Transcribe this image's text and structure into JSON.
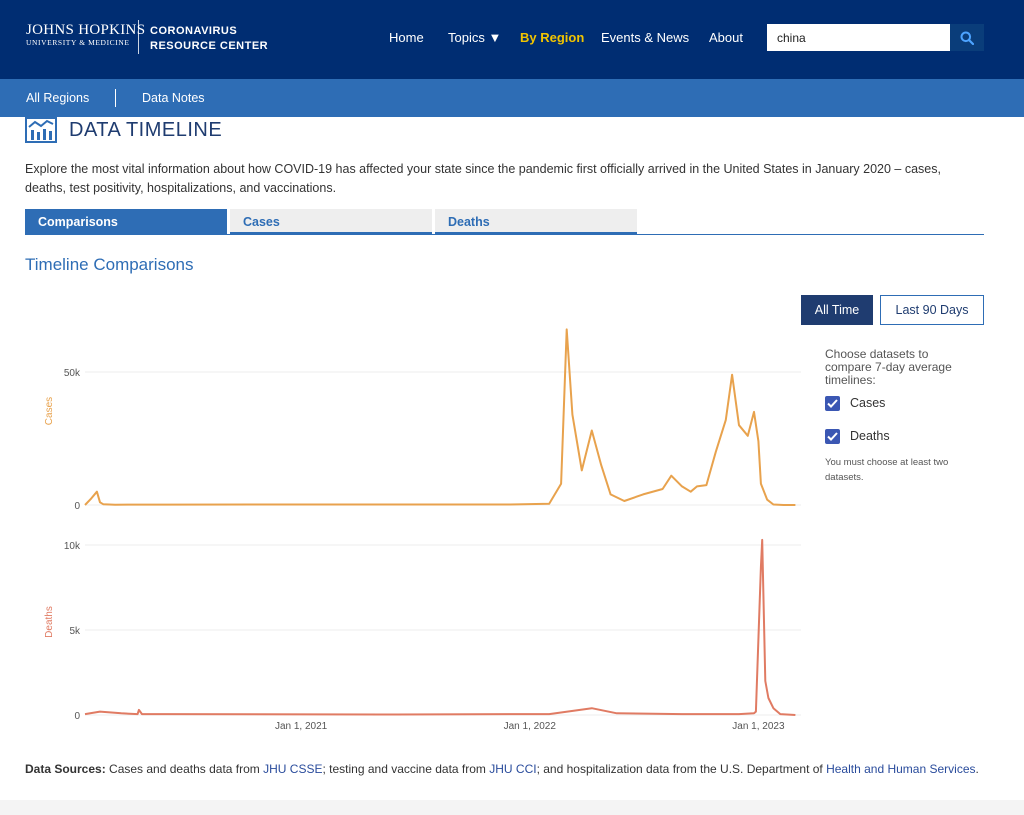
{
  "header": {
    "brand_line1": "JOHNS HOPKINS",
    "brand_line2": "UNIVERSITY & MEDICINE",
    "site_line1": "CORONAVIRUS",
    "site_line2": "RESOURCE CENTER",
    "nav": {
      "home": "Home",
      "topics": "Topics ▼",
      "by_region": "By Region",
      "events": "Events & News",
      "about": "About"
    },
    "search_value": "china",
    "search_icon": "search-icon"
  },
  "subnav": {
    "all_regions": "All Regions",
    "data_notes": "Data Notes"
  },
  "page": {
    "title": "DATA TIMELINE",
    "title_icon": "bar-chart-icon",
    "intro": "Explore the most vital information about how COVID-19 has affected your state since the pandemic first officially arrived in the United States in January 2020 – cases, deaths, test positivity, hospitalizations, and vaccinations.",
    "tabs": [
      "Comparisons",
      "Cases",
      "Deaths"
    ],
    "active_tab": "Comparisons",
    "section_title": "Timeline Comparisons"
  },
  "controls": {
    "all_time": "All Time",
    "last_90": "Last 90 Days",
    "selected": "All Time",
    "dataset_heading": "Choose datasets to compare 7-day average timelines:",
    "datasets": [
      {
        "label": "Cases",
        "checked": true
      },
      {
        "label": "Deaths",
        "checked": true
      }
    ],
    "note": "You must choose at least two datasets."
  },
  "chart_data": [
    {
      "type": "line",
      "ylabel": "Cases",
      "yticks": [
        "0",
        "50k"
      ],
      "ylim": [
        0,
        50000
      ],
      "x": [
        "2020-01-22",
        "2020-02-01",
        "2020-02-10",
        "2020-02-15",
        "2020-02-20",
        "2020-03-10",
        "2020-06-01",
        "2020-12-01",
        "2021-06-01",
        "2021-12-01",
        "2022-02-01",
        "2022-02-20",
        "2022-03-01",
        "2022-03-10",
        "2022-03-25",
        "2022-04-10",
        "2022-04-25",
        "2022-05-10",
        "2022-06-01",
        "2022-07-01",
        "2022-08-01",
        "2022-08-15",
        "2022-09-01",
        "2022-09-15",
        "2022-09-25",
        "2022-10-10",
        "2022-10-25",
        "2022-11-10",
        "2022-11-20",
        "2022-12-01",
        "2022-12-15",
        "2022-12-25",
        "2023-01-01",
        "2023-01-05",
        "2023-01-15",
        "2023-01-25",
        "2023-02-10",
        "2023-03-01"
      ],
      "series": [
        {
          "color": "#E8A24D",
          "values": [
            0,
            2500,
            5000,
            1000,
            300,
            100,
            150,
            200,
            200,
            200,
            500,
            8000,
            66000,
            34000,
            13000,
            28000,
            15000,
            4000,
            1500,
            4000,
            6000,
            11000,
            7000,
            5000,
            7000,
            7500,
            20000,
            32000,
            49000,
            30000,
            26000,
            35000,
            24000,
            8000,
            2000,
            200,
            0,
            0
          ]
        }
      ]
    },
    {
      "type": "line",
      "ylabel": "Deaths",
      "yticks": [
        "0",
        "5k",
        "10k"
      ],
      "ylim": [
        0,
        10000
      ],
      "xticks": [
        "Jan 1, 2021",
        "Jan 1, 2022",
        "Jan 1, 2023"
      ],
      "x": [
        "2020-01-22",
        "2020-02-15",
        "2020-03-20",
        "2020-04-15",
        "2020-04-17",
        "2020-04-22",
        "2020-06-01",
        "2021-06-01",
        "2021-12-01",
        "2022-02-01",
        "2022-04-10",
        "2022-05-20",
        "2022-09-01",
        "2022-12-01",
        "2022-12-25",
        "2022-12-28",
        "2023-01-05",
        "2023-01-07",
        "2023-01-12",
        "2023-01-17",
        "2023-01-25",
        "2023-02-05",
        "2023-03-01"
      ],
      "series": [
        {
          "color": "#E07B63",
          "values": [
            50,
            200,
            100,
            50,
            300,
            50,
            50,
            30,
            50,
            50,
            400,
            100,
            50,
            50,
            100,
            200,
            8700,
            10300,
            2000,
            1000,
            400,
            50,
            0
          ]
        }
      ]
    }
  ],
  "sources": {
    "label": "Data Sources:",
    "t1": " Cases and deaths data from ",
    "l1": "JHU CSSE",
    "t2": "; testing and vaccine data from ",
    "l2": "JHU CCI",
    "t3": "; and hospitalization data from the U.S. Department of ",
    "l3": "Health and Human Services",
    "t4": "."
  }
}
